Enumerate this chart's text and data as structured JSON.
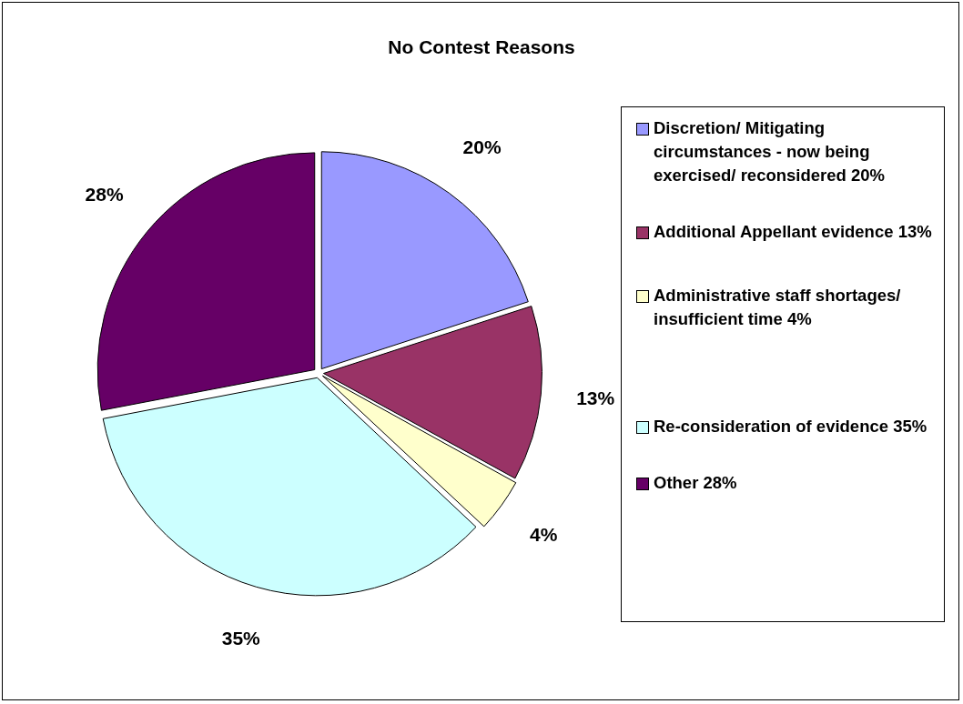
{
  "chart_data": {
    "type": "pie",
    "title": "No Contest Reasons",
    "categories": [
      "Discretion/ Mitigating circumstances - now being exercised/ reconsidered 20%",
      "Additional Appellant evidence 13%",
      "Administrative staff shortages/ insufficient time 4%",
      "Re-consideration of evidence 35%",
      "Other 28%"
    ],
    "values": [
      20,
      13,
      4,
      35,
      28
    ],
    "colors": [
      "#9999ff",
      "#993366",
      "#ffffcc",
      "#ccffff",
      "#660066"
    ],
    "value_labels": [
      "20%",
      "13%",
      "4%",
      "35%",
      "28%"
    ],
    "legend": "right"
  }
}
